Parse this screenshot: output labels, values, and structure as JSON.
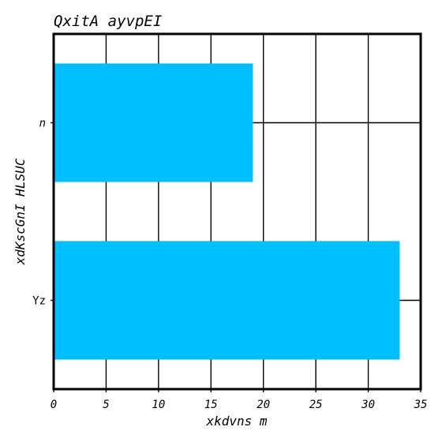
{
  "chart_data": {
    "type": "bar",
    "orientation": "horizontal",
    "title": "QxitA ayvpEI",
    "xlabel": "xkdvns m",
    "ylabel": "xdKscGnI HLSUC",
    "categories": [
      "n",
      "Yz"
    ],
    "category_styles": [
      "italic",
      "normal"
    ],
    "values": [
      19,
      33
    ],
    "xlim": [
      0,
      35
    ],
    "xticks": [
      0,
      5,
      10,
      15,
      20,
      25,
      30,
      35
    ],
    "grid": true,
    "legend": "none",
    "bar_color": "#00bfff",
    "grid_color": "#000000"
  }
}
